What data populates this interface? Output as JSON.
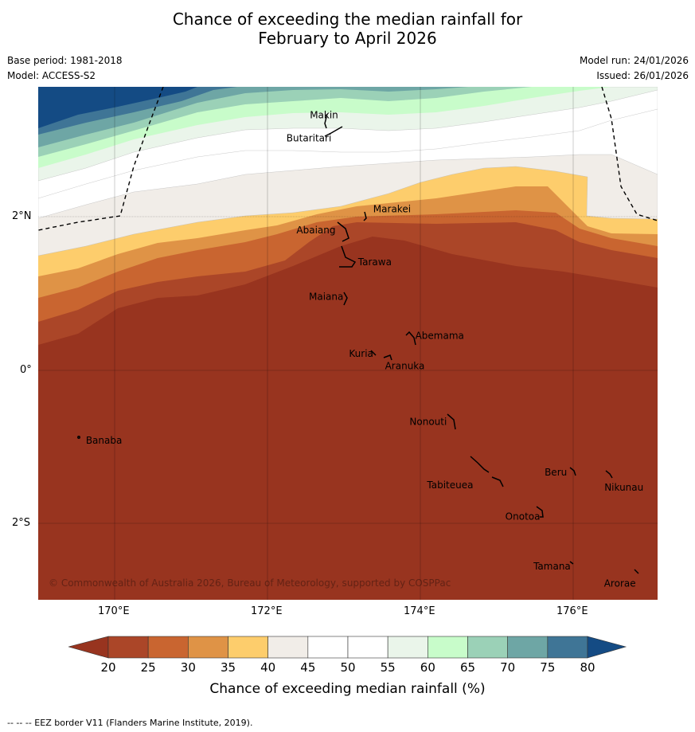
{
  "title": {
    "line1": "Chance of exceeding the median rainfall for",
    "line2": "February to April 2026"
  },
  "meta": {
    "base_period": "Base period: 1981-2018",
    "model": "Model: ACCESS-S2",
    "model_run": "Model run: 24/01/2026",
    "issued": "Issued: 26/01/2026"
  },
  "map": {
    "lat_labels": [
      "2°N",
      "0°",
      "2°S"
    ],
    "lon_labels": [
      "170°E",
      "172°E",
      "174°E",
      "176°E"
    ],
    "copyright": "© Commonwealth of Australia 2026, Bureau of Meteorology, supported by COSPPac",
    "places": [
      {
        "name": "Makin",
        "lon": 172.95,
        "lat": 3.32
      },
      {
        "name": "Butaritari",
        "lon": 172.8,
        "lat": 3.07
      },
      {
        "name": "Marakei",
        "lon": 173.3,
        "lat": 2.0
      },
      {
        "name": "Abaiang",
        "lon": 172.9,
        "lat": 1.85
      },
      {
        "name": "Tarawa",
        "lon": 173.05,
        "lat": 1.4
      },
      {
        "name": "Maiana",
        "lon": 173.0,
        "lat": 0.95
      },
      {
        "name": "Abemama",
        "lon": 173.85,
        "lat": 0.45
      },
      {
        "name": "Kuria",
        "lon": 173.4,
        "lat": 0.22
      },
      {
        "name": "Aranuka",
        "lon": 173.6,
        "lat": 0.17
      },
      {
        "name": "Nonouti",
        "lon": 174.4,
        "lat": -0.65
      },
      {
        "name": "Banaba",
        "lon": 169.54,
        "lat": -0.86
      },
      {
        "name": "Beru",
        "lon": 175.98,
        "lat": -1.31
      },
      {
        "name": "Nikunau",
        "lon": 176.45,
        "lat": -1.36
      },
      {
        "name": "Tabiteuea",
        "lon": 174.9,
        "lat": -1.35
      },
      {
        "name": "Onotoa",
        "lon": 175.58,
        "lat": -1.82
      },
      {
        "name": "Tamana",
        "lon": 175.98,
        "lat": -2.5
      },
      {
        "name": "Arorae",
        "lon": 176.82,
        "lat": -2.63
      }
    ]
  },
  "colorbar": {
    "ticks": [
      "20",
      "25",
      "30",
      "35",
      "40",
      "45",
      "50",
      "55",
      "60",
      "65",
      "70",
      "75",
      "80"
    ],
    "colors": {
      "below20": "#98341f",
      "c20_25": "#ab4628",
      "c25_30": "#c96530",
      "c30_35": "#df9346",
      "c35_40": "#fdcd6c",
      "c40_45": "#f1ede8",
      "c45_50": "#ffffff",
      "c50_55": "#ffffff",
      "c55_60": "#eaf5ea",
      "c60_65": "#c8fcca",
      "c65_70": "#9bd1b7",
      "c70_75": "#6ea6a5",
      "c75_80": "#3f7596",
      "above80": "#144b84"
    },
    "title": "Chance of exceeding median rainfall (%)"
  },
  "footer": "--  --  -- EEZ border V11 (Flanders Marine Institute, 2019)."
}
